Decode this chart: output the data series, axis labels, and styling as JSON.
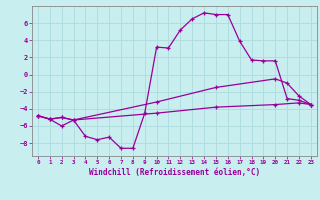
{
  "xlabel": "Windchill (Refroidissement éolien,°C)",
  "background_color": "#c8eef0",
  "grid_color": "#b0dde0",
  "line_color": "#990099",
  "spine_color": "#888888",
  "xlim": [
    -0.5,
    23.5
  ],
  "ylim": [
    -9.5,
    8.0
  ],
  "xticks": [
    0,
    1,
    2,
    3,
    4,
    5,
    6,
    7,
    8,
    9,
    10,
    11,
    12,
    13,
    14,
    15,
    16,
    17,
    18,
    19,
    20,
    21,
    22,
    23
  ],
  "yticks": [
    -8,
    -6,
    -4,
    -2,
    0,
    2,
    4,
    6
  ],
  "series1": [
    [
      0,
      -4.8
    ],
    [
      1,
      -5.2
    ],
    [
      2,
      -6.0
    ],
    [
      3,
      -5.3
    ],
    [
      4,
      -7.2
    ],
    [
      5,
      -7.6
    ],
    [
      6,
      -7.3
    ],
    [
      7,
      -8.6
    ],
    [
      8,
      -8.6
    ],
    [
      9,
      -4.5
    ],
    [
      10,
      3.2
    ],
    [
      11,
      3.1
    ],
    [
      12,
      5.2
    ],
    [
      13,
      6.5
    ],
    [
      14,
      7.2
    ],
    [
      15,
      7.0
    ],
    [
      16,
      7.0
    ],
    [
      17,
      3.9
    ],
    [
      18,
      1.7
    ],
    [
      19,
      1.6
    ],
    [
      20,
      1.6
    ],
    [
      21,
      -2.8
    ],
    [
      22,
      -3.0
    ],
    [
      23,
      -3.5
    ]
  ],
  "series2": [
    [
      0,
      -4.8
    ],
    [
      1,
      -5.2
    ],
    [
      2,
      -5.0
    ],
    [
      3,
      -5.3
    ],
    [
      10,
      -4.5
    ],
    [
      15,
      -3.8
    ],
    [
      20,
      -3.5
    ],
    [
      22,
      -3.3
    ],
    [
      23,
      -3.5
    ]
  ],
  "series3": [
    [
      0,
      -4.8
    ],
    [
      1,
      -5.2
    ],
    [
      2,
      -5.0
    ],
    [
      3,
      -5.3
    ],
    [
      10,
      -3.2
    ],
    [
      15,
      -1.5
    ],
    [
      20,
      -0.5
    ],
    [
      21,
      -1.0
    ],
    [
      22,
      -2.5
    ],
    [
      23,
      -3.5
    ]
  ]
}
